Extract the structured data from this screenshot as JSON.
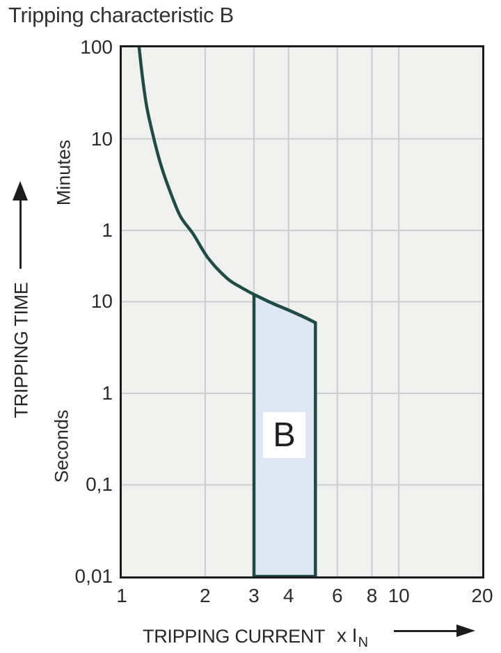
{
  "title": "Tripping characteristic B",
  "colors": {
    "curve": "#1d4c47",
    "region_fill": "#dfe6f4",
    "plot_bg": "#f0f0ef",
    "grid": "#c9ccd1",
    "axis_border": "#1c1c1c"
  },
  "y_axis": {
    "title": "TRIPPING TIME",
    "unit_upper": "Minutes",
    "unit_lower": "Seconds",
    "ticks": [
      {
        "label": "100",
        "seconds": 6000
      },
      {
        "label": "10",
        "seconds": 600
      },
      {
        "label": "1",
        "seconds": 60
      },
      {
        "label": "10",
        "seconds": 10
      },
      {
        "label": "1",
        "seconds": 1
      },
      {
        "label": "0,1",
        "seconds": 0.1
      },
      {
        "label": "0,01",
        "seconds": 0.01
      }
    ],
    "gridlines_seconds": [
      600,
      60,
      10,
      1,
      0.1
    ]
  },
  "x_axis": {
    "title": "TRIPPING CURRENT",
    "multiplier": "x I",
    "multiplier_sub": "N",
    "ticks": [
      {
        "label": "1",
        "value": 1
      },
      {
        "label": "2",
        "value": 2
      },
      {
        "label": "3",
        "value": 3
      },
      {
        "label": "4",
        "value": 4
      },
      {
        "label": "6",
        "value": 6
      },
      {
        "label": "8",
        "value": 8
      },
      {
        "label": "10",
        "value": 10
      },
      {
        "label": "20",
        "value": 20
      }
    ],
    "gridlines": [
      2,
      3,
      4,
      6,
      8,
      10
    ]
  },
  "chart_data": {
    "type": "area",
    "title": "Tripping characteristic B",
    "x_scale": "log",
    "y_scale": "log",
    "xlabel": "TRIPPING CURRENT (x IN)",
    "ylabel": "TRIPPING TIME (Minutes / Seconds)",
    "xlim": [
      1,
      20
    ],
    "ylim_seconds": [
      0.01,
      6000
    ],
    "curve_points_x_t_seconds": [
      [
        1.155,
        6000
      ],
      [
        1.19,
        2700
      ],
      [
        1.235,
        1270
      ],
      [
        1.31,
        580
      ],
      [
        1.39,
        300
      ],
      [
        1.5,
        155
      ],
      [
        1.63,
        85
      ],
      [
        1.81,
        55
      ],
      [
        2.05,
        30
      ],
      [
        2.4,
        18
      ],
      [
        2.7,
        14.3
      ],
      [
        3,
        12
      ],
      [
        3.5,
        9.6
      ],
      [
        4,
        8.1
      ],
      [
        4.5,
        6.9
      ],
      [
        5,
        5.9
      ]
    ],
    "region": {
      "label": "B",
      "x_from": 3,
      "x_to": 5,
      "bottom_seconds": 0.01,
      "top_boundary_x_t_seconds": [
        [
          3,
          12
        ],
        [
          3.5,
          9.6
        ],
        [
          4,
          8.1
        ],
        [
          4.5,
          6.9
        ],
        [
          5,
          5.9
        ]
      ]
    }
  }
}
